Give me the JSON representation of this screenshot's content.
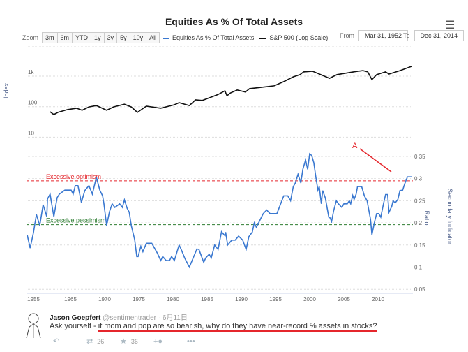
{
  "header": {
    "title": "Equities As % Of Total Assets",
    "menu_icon": "hamburger-icon"
  },
  "toolbar": {
    "zoom_label": "Zoom",
    "zoom_buttons": [
      "3m",
      "6m",
      "YTD",
      "1y",
      "3y",
      "5y",
      "10y",
      "All"
    ],
    "from_label": "From",
    "from_value": "Mar 31, 1952",
    "to_label": "To",
    "to_value": "Dec 31, 2014"
  },
  "colors": {
    "equities": "#3a78d0",
    "sp500": "#111111",
    "optimism": "#e5262c",
    "pessimism": "#2e7d32",
    "annotation": "#e5262c"
  },
  "chart_data": {
    "type": "line",
    "title": "Equities As % Of Total Assets",
    "legend": [
      "Equities As % Of Total Assets",
      "S&P 500 (Log Scale)"
    ],
    "legend_placement": "top",
    "x_ticks": [
      "1955",
      "1965",
      "1970",
      "1975",
      "1980",
      "1985",
      "1990",
      "1995",
      "2000",
      "2005",
      "2010"
    ],
    "left_axis": {
      "label": "Index",
      "scale": "log",
      "ticks": [
        "10",
        "100",
        "1k"
      ],
      "tick_values": [
        10,
        100,
        1000
      ]
    },
    "right_axis": {
      "label": "Ratio",
      "secondary_label": "Secondary Indicator",
      "ticks": [
        "0.05",
        "0.1",
        "0.15",
        "0.2",
        "0.25",
        "0.3",
        "0.35"
      ],
      "tick_values": [
        0.05,
        0.1,
        0.15,
        0.2,
        0.25,
        0.3,
        0.35
      ]
    },
    "grid": true,
    "bands": [
      {
        "label": "Excessive optimism",
        "value": 0.295
      },
      {
        "label": "Excessive pessimism",
        "value": 0.196
      }
    ],
    "annotation": {
      "label": "A"
    },
    "series": [
      {
        "name": "Equities As % Of Total Assets",
        "axis": "right",
        "points": [
          [
            1953.3,
            0.173
          ],
          [
            1954.1,
            0.143
          ],
          [
            1955.0,
            0.178
          ],
          [
            1955.8,
            0.219
          ],
          [
            1956.7,
            0.194
          ],
          [
            1957.6,
            0.241
          ],
          [
            1958.6,
            0.214
          ],
          [
            1958.8,
            0.254
          ],
          [
            1959.5,
            0.265
          ],
          [
            1960.5,
            0.214
          ],
          [
            1961.4,
            0.257
          ],
          [
            1962.0,
            0.265
          ],
          [
            1963.5,
            0.274
          ],
          [
            1965.1,
            0.274
          ],
          [
            1965.4,
            0.265
          ],
          [
            1965.7,
            0.284
          ],
          [
            1966.1,
            0.284
          ],
          [
            1966.6,
            0.246
          ],
          [
            1967.1,
            0.273
          ],
          [
            1967.7,
            0.284
          ],
          [
            1968.2,
            0.265
          ],
          [
            1968.5,
            0.284
          ],
          [
            1968.8,
            0.303
          ],
          [
            1969.3,
            0.274
          ],
          [
            1969.7,
            0.261
          ],
          [
            1969.9,
            0.243
          ],
          [
            1970.3,
            0.194
          ],
          [
            1970.7,
            0.225
          ],
          [
            1971.1,
            0.243
          ],
          [
            1971.5,
            0.235
          ],
          [
            1972.2,
            0.243
          ],
          [
            1972.6,
            0.235
          ],
          [
            1972.9,
            0.252
          ],
          [
            1973.3,
            0.233
          ],
          [
            1973.6,
            0.224
          ],
          [
            1973.9,
            0.194
          ],
          [
            1974.4,
            0.162
          ],
          [
            1974.7,
            0.124
          ],
          [
            1974.9,
            0.124
          ],
          [
            1975.3,
            0.147
          ],
          [
            1975.6,
            0.135
          ],
          [
            1976.1,
            0.154
          ],
          [
            1976.9,
            0.154
          ],
          [
            1977.3,
            0.143
          ],
          [
            1977.7,
            0.132
          ],
          [
            1978.2,
            0.115
          ],
          [
            1978.5,
            0.124
          ],
          [
            1979.0,
            0.115
          ],
          [
            1979.5,
            0.115
          ],
          [
            1979.8,
            0.124
          ],
          [
            1980.2,
            0.115
          ],
          [
            1980.9,
            0.15
          ],
          [
            1981.2,
            0.14
          ],
          [
            1981.7,
            0.121
          ],
          [
            1982.4,
            0.1
          ],
          [
            1983.5,
            0.141
          ],
          [
            1983.8,
            0.14
          ],
          [
            1984.5,
            0.111
          ],
          [
            1984.8,
            0.121
          ],
          [
            1985.3,
            0.129
          ],
          [
            1985.6,
            0.121
          ],
          [
            1986.1,
            0.15
          ],
          [
            1986.6,
            0.14
          ],
          [
            1987.1,
            0.18
          ],
          [
            1987.6,
            0.171
          ],
          [
            1987.7,
            0.179
          ],
          [
            1988.0,
            0.15
          ],
          [
            1988.6,
            0.161
          ],
          [
            1989.1,
            0.161
          ],
          [
            1989.6,
            0.17
          ],
          [
            1990.2,
            0.161
          ],
          [
            1990.7,
            0.14
          ],
          [
            1991.1,
            0.169
          ],
          [
            1991.6,
            0.179
          ],
          [
            1991.9,
            0.2
          ],
          [
            1992.2,
            0.19
          ],
          [
            1993.2,
            0.221
          ],
          [
            1993.7,
            0.229
          ],
          [
            1994.2,
            0.221
          ],
          [
            1995.2,
            0.221
          ],
          [
            1996.2,
            0.261
          ],
          [
            1996.8,
            0.261
          ],
          [
            1997.2,
            0.25
          ],
          [
            1997.6,
            0.282
          ],
          [
            1997.9,
            0.29
          ],
          [
            1998.3,
            0.31
          ],
          [
            1998.7,
            0.29
          ],
          [
            1999.0,
            0.321
          ],
          [
            1999.4,
            0.342
          ],
          [
            1999.7,
            0.321
          ],
          [
            2000.0,
            0.356
          ],
          [
            2000.3,
            0.352
          ],
          [
            2000.6,
            0.336
          ],
          [
            2000.9,
            0.304
          ],
          [
            2001.2,
            0.274
          ],
          [
            2001.4,
            0.282
          ],
          [
            2001.7,
            0.243
          ],
          [
            2001.9,
            0.273
          ],
          [
            2002.3,
            0.256
          ],
          [
            2002.8,
            0.213
          ],
          [
            2003.0,
            0.211
          ],
          [
            2003.2,
            0.203
          ],
          [
            2003.5,
            0.227
          ],
          [
            2003.9,
            0.25
          ],
          [
            2004.2,
            0.243
          ],
          [
            2004.7,
            0.235
          ],
          [
            2005.0,
            0.243
          ],
          [
            2005.5,
            0.243
          ],
          [
            2005.8,
            0.25
          ],
          [
            2006.0,
            0.243
          ],
          [
            2006.3,
            0.262
          ],
          [
            2006.5,
            0.253
          ],
          [
            2006.8,
            0.265
          ],
          [
            2007.0,
            0.282
          ],
          [
            2007.6,
            0.282
          ],
          [
            2008.0,
            0.261
          ],
          [
            2008.4,
            0.25
          ],
          [
            2008.9,
            0.208
          ],
          [
            2009.1,
            0.173
          ],
          [
            2009.5,
            0.203
          ],
          [
            2009.8,
            0.221
          ],
          [
            2010.1,
            0.221
          ],
          [
            2010.4,
            0.213
          ],
          [
            2010.8,
            0.243
          ],
          [
            2011.1,
            0.264
          ],
          [
            2011.4,
            0.264
          ],
          [
            2011.6,
            0.224
          ],
          [
            2012.0,
            0.237
          ],
          [
            2012.2,
            0.25
          ],
          [
            2012.5,
            0.245
          ],
          [
            2012.9,
            0.253
          ],
          [
            2013.2,
            0.273
          ],
          [
            2013.6,
            0.274
          ],
          [
            2013.9,
            0.288
          ],
          [
            2014.3,
            0.304
          ],
          [
            2014.5,
            0.304
          ],
          [
            2014.9,
            0.304
          ]
        ]
      },
      {
        "name": "S&P 500 (Log Scale)",
        "axis": "left",
        "points": [
          [
            1959.5,
            68
          ],
          [
            1960.5,
            55
          ],
          [
            1961.6,
            65
          ],
          [
            1964.2,
            80
          ],
          [
            1965.9,
            89
          ],
          [
            1966.7,
            76
          ],
          [
            1967.7,
            98
          ],
          [
            1968.8,
            109
          ],
          [
            1970.3,
            76
          ],
          [
            1971.3,
            98
          ],
          [
            1972.9,
            120
          ],
          [
            1973.9,
            98
          ],
          [
            1974.8,
            65
          ],
          [
            1976.1,
            104
          ],
          [
            1978.2,
            89
          ],
          [
            1980.2,
            115
          ],
          [
            1980.9,
            135
          ],
          [
            1982.4,
            109
          ],
          [
            1983.3,
            167
          ],
          [
            1984.3,
            160
          ],
          [
            1985.6,
            206
          ],
          [
            1986.6,
            250
          ],
          [
            1987.6,
            330
          ],
          [
            1987.9,
            228
          ],
          [
            1988.4,
            280
          ],
          [
            1989.4,
            350
          ],
          [
            1990.6,
            300
          ],
          [
            1991.2,
            390
          ],
          [
            1994.8,
            480
          ],
          [
            1996.2,
            660
          ],
          [
            1997.6,
            950
          ],
          [
            1998.6,
            1120
          ],
          [
            1999.1,
            1380
          ],
          [
            2000.4,
            1450
          ],
          [
            2001.6,
            1120
          ],
          [
            2002.9,
            850
          ],
          [
            2004.0,
            1120
          ],
          [
            2006.4,
            1380
          ],
          [
            2007.8,
            1520
          ],
          [
            2008.5,
            1380
          ],
          [
            2009.1,
            770
          ],
          [
            2009.8,
            1120
          ],
          [
            2011.1,
            1380
          ],
          [
            2011.6,
            1170
          ],
          [
            2013.2,
            1520
          ],
          [
            2014.9,
            2090
          ]
        ]
      }
    ]
  },
  "tweet": {
    "author": "Jason Goepfert",
    "handle": "@sentimentrader",
    "date": "· 6月11日",
    "text_prefix": "Ask yourself - ",
    "text_highlight": "if mom and pop are so bearish, why do they have near-record % assets in stocks?",
    "retweets": "26",
    "favorites": "36"
  }
}
